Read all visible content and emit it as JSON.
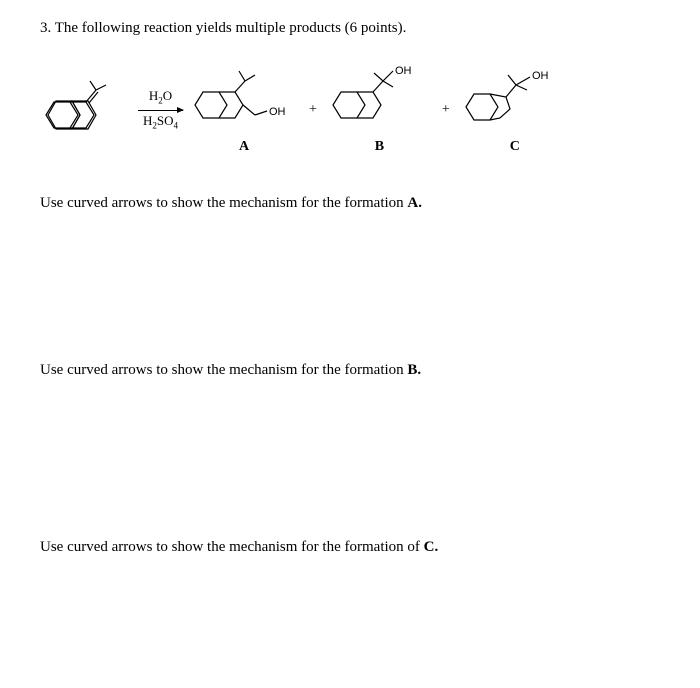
{
  "question": "3. The following reaction yields multiple products (6 points).",
  "reagents": {
    "top": "H₂O",
    "bottom": "H₂SO₄"
  },
  "labels": {
    "A": "A",
    "B": "B",
    "C": "C",
    "OH": "OH"
  },
  "plus": "+",
  "promptA": "Use curved arrows to show the mechanism for the formation A.",
  "promptB": "Use curved arrows to show the mechanism for the formation B.",
  "promptC": "Use curved arrows to show the mechanism for the formation of C.",
  "colors": {
    "stroke": "#000000",
    "bg": "#ffffff"
  }
}
